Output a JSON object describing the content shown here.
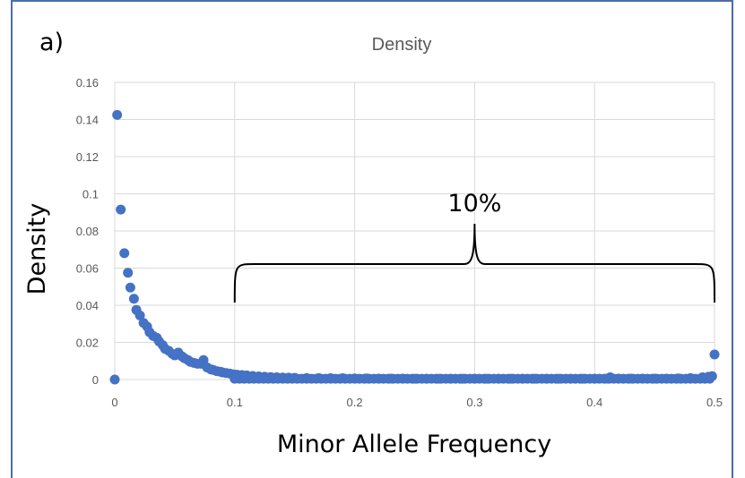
{
  "panel_label": "a)",
  "chart_data": {
    "type": "scatter",
    "title": "Density",
    "xlabel": "Minor Allele Frequency",
    "ylabel": "Density",
    "xlim": [
      0,
      0.5
    ],
    "ylim": [
      0,
      0.16
    ],
    "x_ticks": [
      "0",
      "0.1",
      "0.2",
      "0.3",
      "0.4",
      "0.5"
    ],
    "y_ticks": [
      "0",
      "0.02",
      "0.04",
      "0.06",
      "0.08",
      "0.1",
      "0.12",
      "0.14",
      "0.16"
    ],
    "grid": true,
    "legend": "none",
    "marker_color": "#4472c4",
    "annotation": {
      "text": "10%",
      "x_from": 0.1,
      "x_to": 0.5
    },
    "points": [
      [
        0.0,
        0.0
      ],
      [
        0.002,
        0.1425
      ],
      [
        0.005,
        0.0915
      ],
      [
        0.008,
        0.068
      ],
      [
        0.011,
        0.0575
      ],
      [
        0.013,
        0.0495
      ],
      [
        0.016,
        0.0435
      ],
      [
        0.018,
        0.0375
      ],
      [
        0.021,
        0.0345
      ],
      [
        0.024,
        0.0305
      ],
      [
        0.027,
        0.0285
      ],
      [
        0.029,
        0.0255
      ],
      [
        0.032,
        0.0235
      ],
      [
        0.035,
        0.0225
      ],
      [
        0.037,
        0.0205
      ],
      [
        0.04,
        0.0185
      ],
      [
        0.042,
        0.0165
      ],
      [
        0.045,
        0.0155
      ],
      [
        0.048,
        0.0138
      ],
      [
        0.05,
        0.013
      ],
      [
        0.053,
        0.0145
      ],
      [
        0.056,
        0.0125
      ],
      [
        0.058,
        0.0115
      ],
      [
        0.061,
        0.0105
      ],
      [
        0.063,
        0.0095
      ],
      [
        0.066,
        0.009
      ],
      [
        0.069,
        0.0085
      ],
      [
        0.072,
        0.0085
      ],
      [
        0.074,
        0.0105
      ],
      [
        0.077,
        0.0065
      ],
      [
        0.08,
        0.0055
      ],
      [
        0.082,
        0.0052
      ],
      [
        0.085,
        0.0045
      ],
      [
        0.088,
        0.0042
      ],
      [
        0.09,
        0.0038
      ],
      [
        0.093,
        0.0035
      ],
      [
        0.096,
        0.0032
      ],
      [
        0.099,
        0.0028
      ],
      [
        0.102,
        0.0026
      ],
      [
        0.106,
        0.0024
      ],
      [
        0.11,
        0.0022
      ],
      [
        0.115,
        0.0019
      ],
      [
        0.12,
        0.0017
      ],
      [
        0.125,
        0.0015
      ],
      [
        0.13,
        0.0013
      ],
      [
        0.135,
        0.0012
      ],
      [
        0.14,
        0.0011
      ],
      [
        0.145,
        0.001
      ],
      [
        0.15,
        0.0009
      ],
      [
        0.16,
        0.0008
      ],
      [
        0.17,
        0.0008
      ],
      [
        0.18,
        0.0007
      ],
      [
        0.19,
        0.0007
      ],
      [
        0.2,
        0.0006
      ],
      [
        0.21,
        0.0006
      ],
      [
        0.22,
        0.0005
      ],
      [
        0.23,
        0.0005
      ],
      [
        0.24,
        0.0005
      ],
      [
        0.25,
        0.0004
      ],
      [
        0.26,
        0.0004
      ],
      [
        0.27,
        0.0004
      ],
      [
        0.28,
        0.0004
      ],
      [
        0.29,
        0.0004
      ],
      [
        0.3,
        0.0004
      ],
      [
        0.31,
        0.0004
      ],
      [
        0.32,
        0.0004
      ],
      [
        0.33,
        0.0004
      ],
      [
        0.34,
        0.0004
      ],
      [
        0.35,
        0.0004
      ],
      [
        0.36,
        0.0004
      ],
      [
        0.37,
        0.0004
      ],
      [
        0.38,
        0.0004
      ],
      [
        0.39,
        0.0004
      ],
      [
        0.4,
        0.0004
      ],
      [
        0.41,
        0.0005
      ],
      [
        0.413,
        0.0012
      ],
      [
        0.42,
        0.0005
      ],
      [
        0.43,
        0.0005
      ],
      [
        0.44,
        0.0005
      ],
      [
        0.45,
        0.0005
      ],
      [
        0.46,
        0.0005
      ],
      [
        0.47,
        0.0006
      ],
      [
        0.48,
        0.0008
      ],
      [
        0.49,
        0.0012
      ],
      [
        0.495,
        0.0015
      ],
      [
        0.498,
        0.0018
      ],
      [
        0.5,
        0.0135
      ]
    ]
  }
}
